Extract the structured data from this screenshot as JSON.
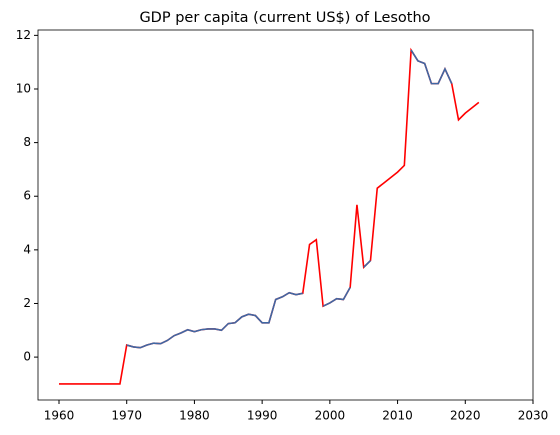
{
  "chart_data": {
    "type": "line",
    "title": "GDP per capita (current US$) of Lesotho",
    "x": [
      1960,
      1961,
      1962,
      1963,
      1964,
      1965,
      1966,
      1967,
      1968,
      1969,
      1970,
      1971,
      1972,
      1973,
      1974,
      1975,
      1976,
      1977,
      1978,
      1979,
      1980,
      1981,
      1982,
      1983,
      1984,
      1985,
      1986,
      1987,
      1988,
      1989,
      1990,
      1991,
      1992,
      1993,
      1994,
      1995,
      1996,
      1997,
      1998,
      1999,
      2000,
      2001,
      2002,
      2003,
      2004,
      2005,
      2006,
      2007,
      2008,
      2009,
      2010,
      2011,
      2012,
      2013,
      2014,
      2015,
      2016,
      2017,
      2018,
      2019,
      2020,
      2021,
      2022
    ],
    "series": [
      {
        "color": "#ff0000",
        "values": [
          -1,
          -1,
          -1,
          -1,
          -1,
          -1,
          -1,
          -1,
          -1,
          -1,
          0.45,
          0.38,
          0.35,
          0.45,
          0.52,
          0.5,
          0.62,
          0.8,
          0.9,
          1.02,
          0.95,
          1.02,
          1.05,
          1.05,
          1.0,
          1.25,
          1.28,
          1.5,
          1.6,
          1.55,
          1.28,
          1.28,
          2.15,
          2.25,
          2.4,
          2.33,
          2.38,
          4.2,
          4.38,
          1.9,
          2.02,
          2.18,
          2.15,
          2.6,
          5.68,
          3.35,
          3.6,
          6.3,
          6.5,
          6.7,
          6.9,
          7.15,
          11.45,
          11.05,
          10.95,
          10.2,
          10.2,
          10.75,
          10.2,
          8.85,
          9.1,
          9.3,
          9.5
        ]
      },
      {
        "color": "#3f68a4",
        "values": [
          null,
          null,
          null,
          null,
          null,
          null,
          null,
          null,
          null,
          null,
          0.45,
          0.38,
          0.35,
          0.45,
          0.52,
          0.5,
          0.62,
          0.8,
          0.9,
          1.02,
          0.95,
          1.02,
          1.05,
          1.05,
          1.0,
          1.25,
          1.28,
          1.5,
          1.6,
          1.55,
          1.28,
          1.28,
          2.15,
          2.25,
          2.4,
          2.33,
          2.38,
          null,
          null,
          1.9,
          2.02,
          2.18,
          2.15,
          2.6,
          null,
          3.35,
          3.6,
          null,
          null,
          null,
          null,
          null,
          11.45,
          11.05,
          10.95,
          10.2,
          10.2,
          10.75,
          10.2,
          null,
          null,
          null,
          null
        ]
      }
    ],
    "xlim": [
      1956.9,
      2030
    ],
    "xticks": [
      1960,
      1970,
      1980,
      1990,
      2000,
      2010,
      2020,
      2030
    ],
    "ylim": [
      -1.6,
      12.2
    ],
    "yticks": [
      0,
      2,
      4,
      6,
      8,
      10,
      12
    ],
    "grid": false
  }
}
